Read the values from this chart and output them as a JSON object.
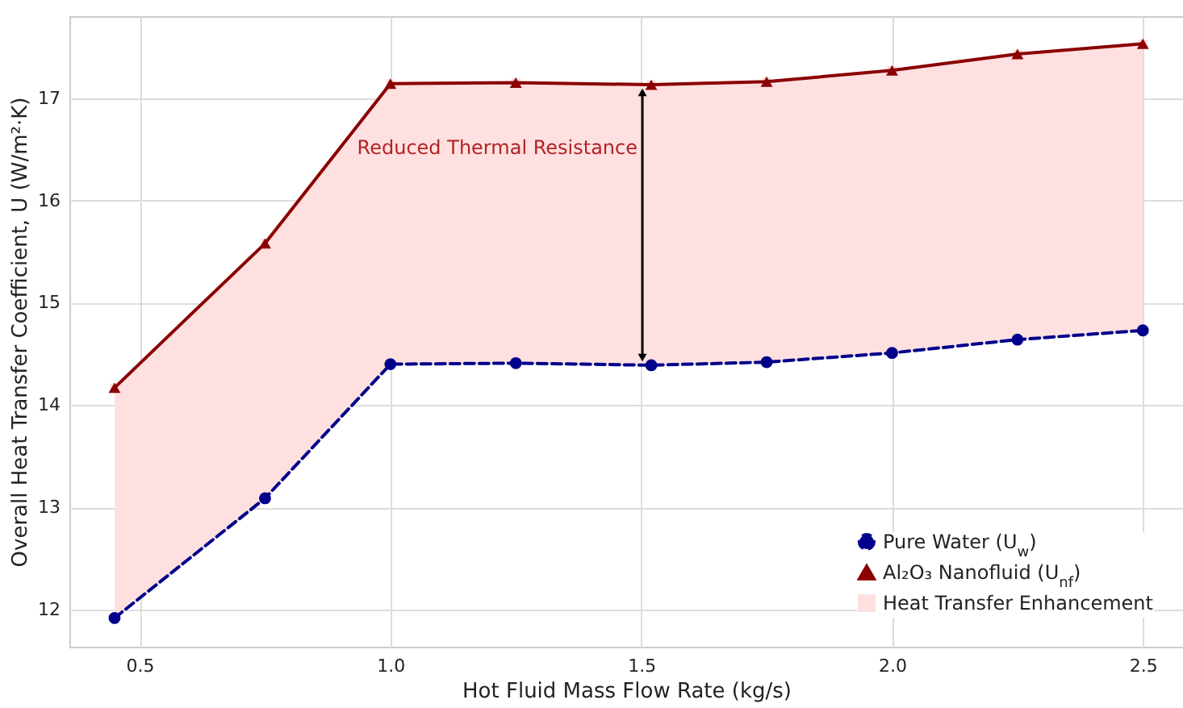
{
  "chart_data": {
    "type": "line",
    "xlabel": "Hot Fluid Mass Flow Rate (kg/s)",
    "ylabel": "Overall Heat Transfer Coefficient, U (W/m²·K)",
    "x": [
      0.45,
      0.75,
      1.0,
      1.25,
      1.52,
      1.75,
      2.0,
      2.25,
      2.5
    ],
    "series": [
      {
        "name": "Heat Transfer Enhancement",
        "type": "area",
        "color": "#ffe0e0",
        "values": [
          null,
          null,
          null,
          null,
          null,
          null,
          null,
          null,
          null
        ],
        "lower": [
          11.92,
          13.09,
          14.4,
          14.41,
          14.39,
          14.42,
          14.51,
          14.64,
          14.73
        ],
        "upper": [
          14.17,
          15.58,
          17.14,
          17.15,
          17.13,
          17.16,
          17.27,
          17.43,
          17.53
        ]
      },
      {
        "name": "Pure Water (U$_{w}$)",
        "color": "#00008b",
        "marker": "circle",
        "line_style": "dashed",
        "values": [
          11.92,
          13.09,
          14.4,
          14.41,
          14.39,
          14.42,
          14.51,
          14.64,
          14.73
        ]
      },
      {
        "name": "Al₂O₃ Nanofluid (U$_{nf}$)",
        "color": "#8b0000",
        "marker": "triangle",
        "line_style": "solid",
        "values": [
          14.17,
          15.58,
          17.14,
          17.15,
          17.13,
          17.16,
          17.27,
          17.43,
          17.53
        ]
      }
    ],
    "xlim": [
      0.36,
      2.58
    ],
    "ylim": [
      11.64,
      17.8
    ],
    "xticks": [
      0.5,
      {
        "value": 1,
        "label": "1.0"
      },
      1.5,
      {
        "value": 2,
        "label": "2.0"
      },
      2.5
    ],
    "yticks": [
      12,
      13,
      14,
      15,
      16,
      17
    ],
    "annotations": [
      "Reduced Thermal Resistance"
    ],
    "grid": true,
    "legend": "bottom right"
  }
}
